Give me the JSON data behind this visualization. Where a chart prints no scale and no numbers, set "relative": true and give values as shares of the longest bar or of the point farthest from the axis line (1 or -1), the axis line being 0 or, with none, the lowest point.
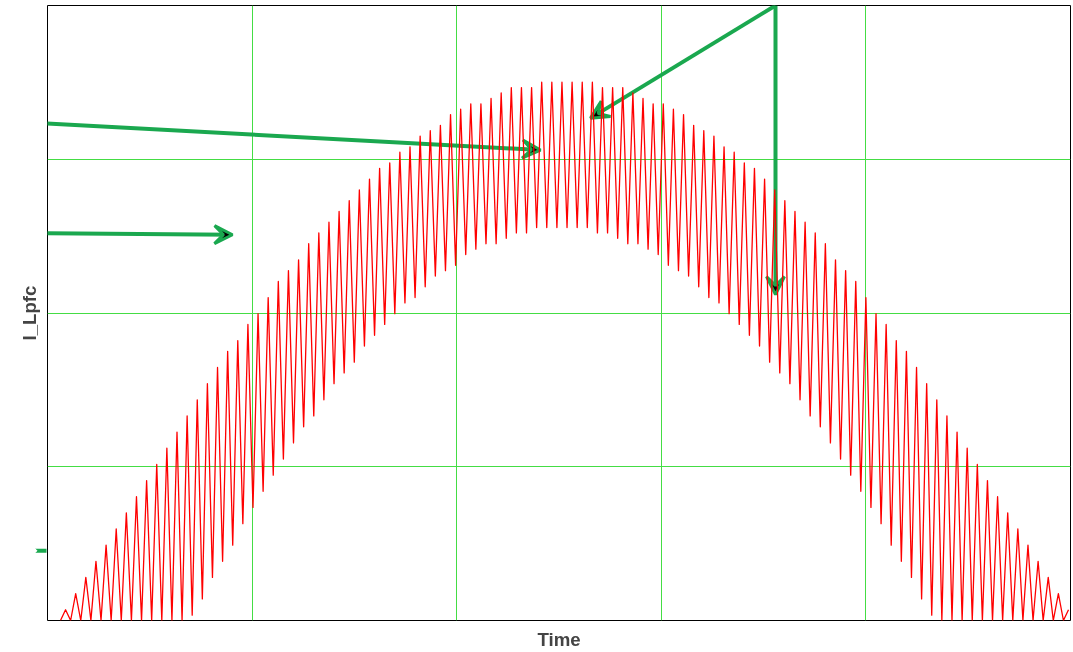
{
  "chart_data": {
    "type": "line",
    "relative": true,
    "xlabel": "Time",
    "ylabel": "I_Lpfc",
    "grid": true,
    "tick_labels": false,
    "color": "#ff0000",
    "categories": [
      null,
      null,
      null,
      null,
      null,
      null,
      null,
      null,
      null,
      null,
      null,
      null,
      null,
      null,
      null,
      null,
      null,
      null,
      null,
      null,
      null,
      null,
      null,
      null,
      null,
      null,
      null,
      null,
      null,
      null,
      null,
      null,
      null,
      null,
      null,
      null,
      null,
      null,
      null,
      null,
      null,
      null,
      null,
      null,
      null,
      null,
      null,
      null,
      null,
      null,
      null,
      null,
      null,
      null,
      null,
      null,
      null,
      null,
      null,
      null,
      null,
      null,
      null,
      null,
      null,
      null,
      null,
      null,
      null,
      null,
      null,
      null,
      null,
      null,
      null,
      null,
      null,
      null,
      null,
      null,
      null,
      null,
      null,
      null,
      null,
      null,
      null,
      null,
      null,
      null,
      null,
      null,
      null,
      null,
      null,
      null,
      null,
      null,
      null,
      null,
      null,
      null,
      null,
      null,
      null,
      null,
      null,
      null,
      null,
      null,
      null,
      null,
      null,
      null,
      null,
      null,
      null,
      null,
      null,
      null,
      null,
      null,
      null,
      null,
      null,
      null,
      null,
      null,
      null,
      null,
      null,
      null,
      null,
      null,
      null,
      null,
      null,
      null,
      null,
      null,
      null,
      null,
      null,
      null,
      null,
      null,
      null,
      null,
      null,
      null,
      null,
      null,
      null,
      null,
      null,
      null,
      null,
      null,
      null,
      null,
      null,
      null,
      null,
      null,
      null,
      null,
      null,
      null,
      null,
      null,
      null,
      null,
      null,
      null,
      null,
      null,
      null,
      null,
      null,
      null,
      null,
      null,
      null,
      null,
      null,
      null,
      null,
      null,
      null,
      null,
      null,
      null,
      null,
      null,
      null,
      null,
      null,
      null,
      null,
      null
    ],
    "values": [
      0,
      0.02,
      0,
      0.05,
      0,
      0.08,
      0,
      0.11,
      0,
      0.14,
      0,
      0.17,
      0,
      0.2,
      0,
      0.23,
      0,
      0.26,
      0,
      0.29,
      0,
      0.32,
      0,
      0.35,
      0,
      0.38,
      0.01,
      0.41,
      0.04,
      0.44,
      0.08,
      0.47,
      0.11,
      0.5,
      0.14,
      0.52,
      0.18,
      0.55,
      0.21,
      0.57,
      0.24,
      0.6,
      0.27,
      0.63,
      0.3,
      0.65,
      0.33,
      0.67,
      0.36,
      0.7,
      0.38,
      0.72,
      0.41,
      0.74,
      0.44,
      0.76,
      0.46,
      0.78,
      0.48,
      0.8,
      0.51,
      0.82,
      0.53,
      0.84,
      0.55,
      0.85,
      0.57,
      0.87,
      0.59,
      0.88,
      0.6,
      0.9,
      0.62,
      0.91,
      0.64,
      0.92,
      0.65,
      0.94,
      0.66,
      0.95,
      0.68,
      0.96,
      0.69,
      0.96,
      0.7,
      0.97,
      0.7,
      0.98,
      0.71,
      0.99,
      0.72,
      0.99,
      0.72,
      0.99,
      0.73,
      1.0,
      0.73,
      1.0,
      0.73,
      1.0,
      0.73,
      1.0,
      0.73,
      1.0,
      0.73,
      1.0,
      0.72,
      0.99,
      0.72,
      0.99,
      0.71,
      0.99,
      0.7,
      0.98,
      0.7,
      0.97,
      0.69,
      0.96,
      0.68,
      0.96,
      0.66,
      0.95,
      0.65,
      0.94,
      0.64,
      0.92,
      0.62,
      0.91,
      0.6,
      0.9,
      0.59,
      0.88,
      0.57,
      0.87,
      0.55,
      0.85,
      0.53,
      0.84,
      0.51,
      0.82,
      0.48,
      0.8,
      0.46,
      0.78,
      0.44,
      0.76,
      0.41,
      0.74,
      0.38,
      0.72,
      0.36,
      0.7,
      0.33,
      0.67,
      0.3,
      0.65,
      0.27,
      0.63,
      0.24,
      0.6,
      0.21,
      0.57,
      0.18,
      0.55,
      0.14,
      0.52,
      0.11,
      0.5,
      0.08,
      0.47,
      0.04,
      0.44,
      0.01,
      0.41,
      0,
      0.38,
      0,
      0.35,
      0,
      0.32,
      0,
      0.29,
      0,
      0.26,
      0,
      0.23,
      0,
      0.2,
      0,
      0.17,
      0,
      0.14,
      0,
      0.11,
      0,
      0.08,
      0,
      0.05,
      0,
      0.02
    ]
  }
}
